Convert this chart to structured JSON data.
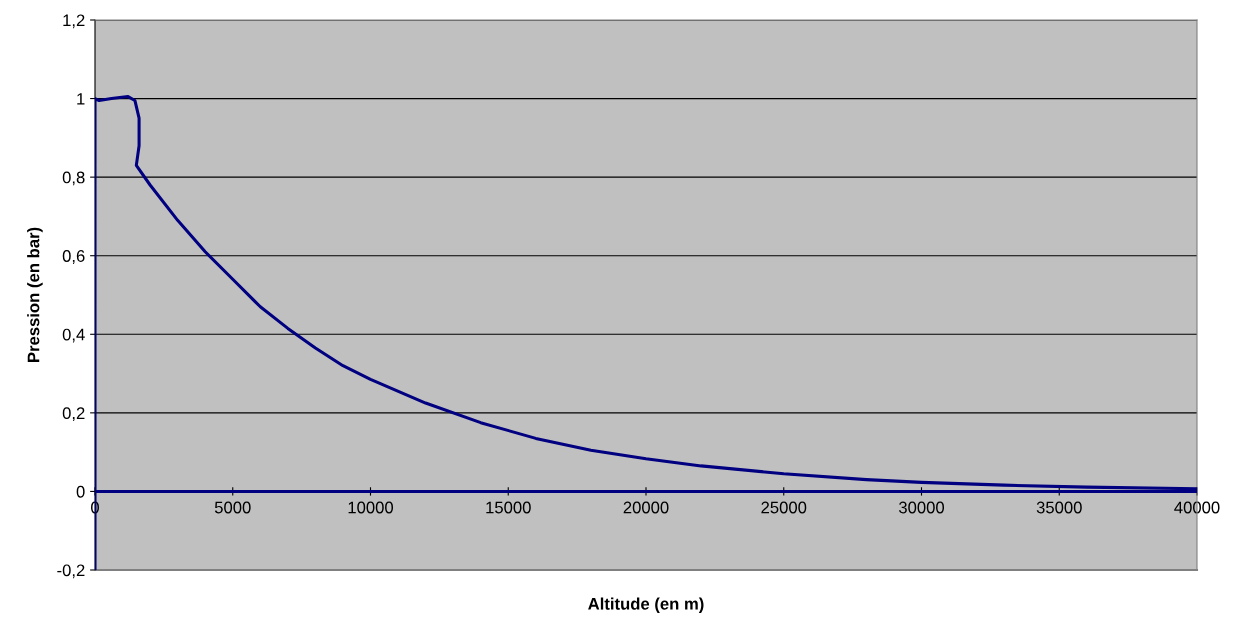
{
  "chart_data": {
    "type": "line",
    "xlabel": "Altitude (en m)",
    "ylabel": "Pression (en bar)",
    "series": [
      {
        "color": "#000080",
        "x": [
          0,
          0,
          150,
          600,
          1200,
          1450,
          1600,
          1600,
          1500,
          2000,
          3000,
          4000,
          5000,
          6000,
          7000,
          8000,
          9000,
          10000,
          12000,
          14000,
          16000,
          18000,
          20000,
          22000,
          25000,
          28000,
          30000,
          33000,
          36000,
          40000,
          40000,
          0
        ],
        "values": [
          -0.2,
          1.0,
          0.995,
          1.0,
          1.005,
          0.995,
          0.95,
          0.88,
          0.83,
          0.78,
          0.69,
          0.61,
          0.54,
          0.47,
          0.415,
          0.365,
          0.32,
          0.285,
          0.225,
          0.175,
          0.135,
          0.105,
          0.083,
          0.065,
          0.045,
          0.03,
          0.023,
          0.016,
          0.011,
          0.007,
          0,
          0
        ]
      }
    ],
    "xlim": [
      0,
      40000
    ],
    "xticks": [
      0,
      5000,
      10000,
      15000,
      20000,
      25000,
      30000,
      35000,
      40000
    ],
    "ylim": [
      -0.2,
      1.2
    ],
    "yticks": [
      {
        "value": -0.2,
        "label": "-0,2"
      },
      0,
      {
        "value": 0.2,
        "label": "0,2"
      },
      {
        "value": 0.4,
        "label": "0,4"
      },
      {
        "value": 0.6,
        "label": "0,6"
      },
      {
        "value": 0.8,
        "label": "0,8"
      },
      1,
      {
        "value": 1.2,
        "label": "1,2"
      }
    ],
    "grid": "y",
    "marker": "none",
    "line_style": "solid"
  }
}
